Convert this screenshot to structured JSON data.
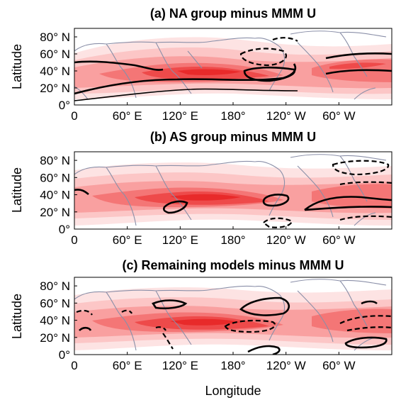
{
  "colors": {
    "shade_levels": [
      "#fde3e3",
      "#fcc6c6",
      "#f9a0a0",
      "#f47676",
      "#ee4a4a",
      "#e82a2a"
    ],
    "coastline": "#8a8fa8",
    "contour": "#000000"
  },
  "chart_data": [
    {
      "type": "heatmap",
      "title": "(a) NA group minus MMM U",
      "ylabel": "Latitude",
      "xlabel": "",
      "x_ticks": [
        "0",
        "60° E",
        "120° E",
        "180°",
        "120° W",
        "60° W"
      ],
      "y_ticks": [
        "0°",
        "20° N",
        "40° N",
        "60° N",
        "80° N"
      ],
      "xlim": [
        0,
        360
      ],
      "ylim": [
        0,
        90
      ],
      "shading": "multi-model mean zonal wind U (red shading)",
      "contours": "solid positive, dashed negative anomalies"
    },
    {
      "type": "heatmap",
      "title": "(b) AS group minus MMM U",
      "ylabel": "Latitude",
      "xlabel": "",
      "x_ticks": [
        "0",
        "60° E",
        "120° E",
        "180°",
        "120° W",
        "60° W"
      ],
      "y_ticks": [
        "0°",
        "20° N",
        "40° N",
        "60° N",
        "80° N"
      ],
      "xlim": [
        0,
        360
      ],
      "ylim": [
        0,
        90
      ]
    },
    {
      "type": "heatmap",
      "title": "(c) Remaining models minus MMM U",
      "ylabel": "Latitude",
      "xlabel": "Longitude",
      "x_ticks": [
        "0",
        "60° E",
        "120° E",
        "180°",
        "120° W",
        "60° W"
      ],
      "y_ticks": [
        "0°",
        "20° N",
        "40° N",
        "60° N",
        "80° N"
      ],
      "xlim": [
        0,
        360
      ],
      "ylim": [
        0,
        90
      ]
    }
  ]
}
